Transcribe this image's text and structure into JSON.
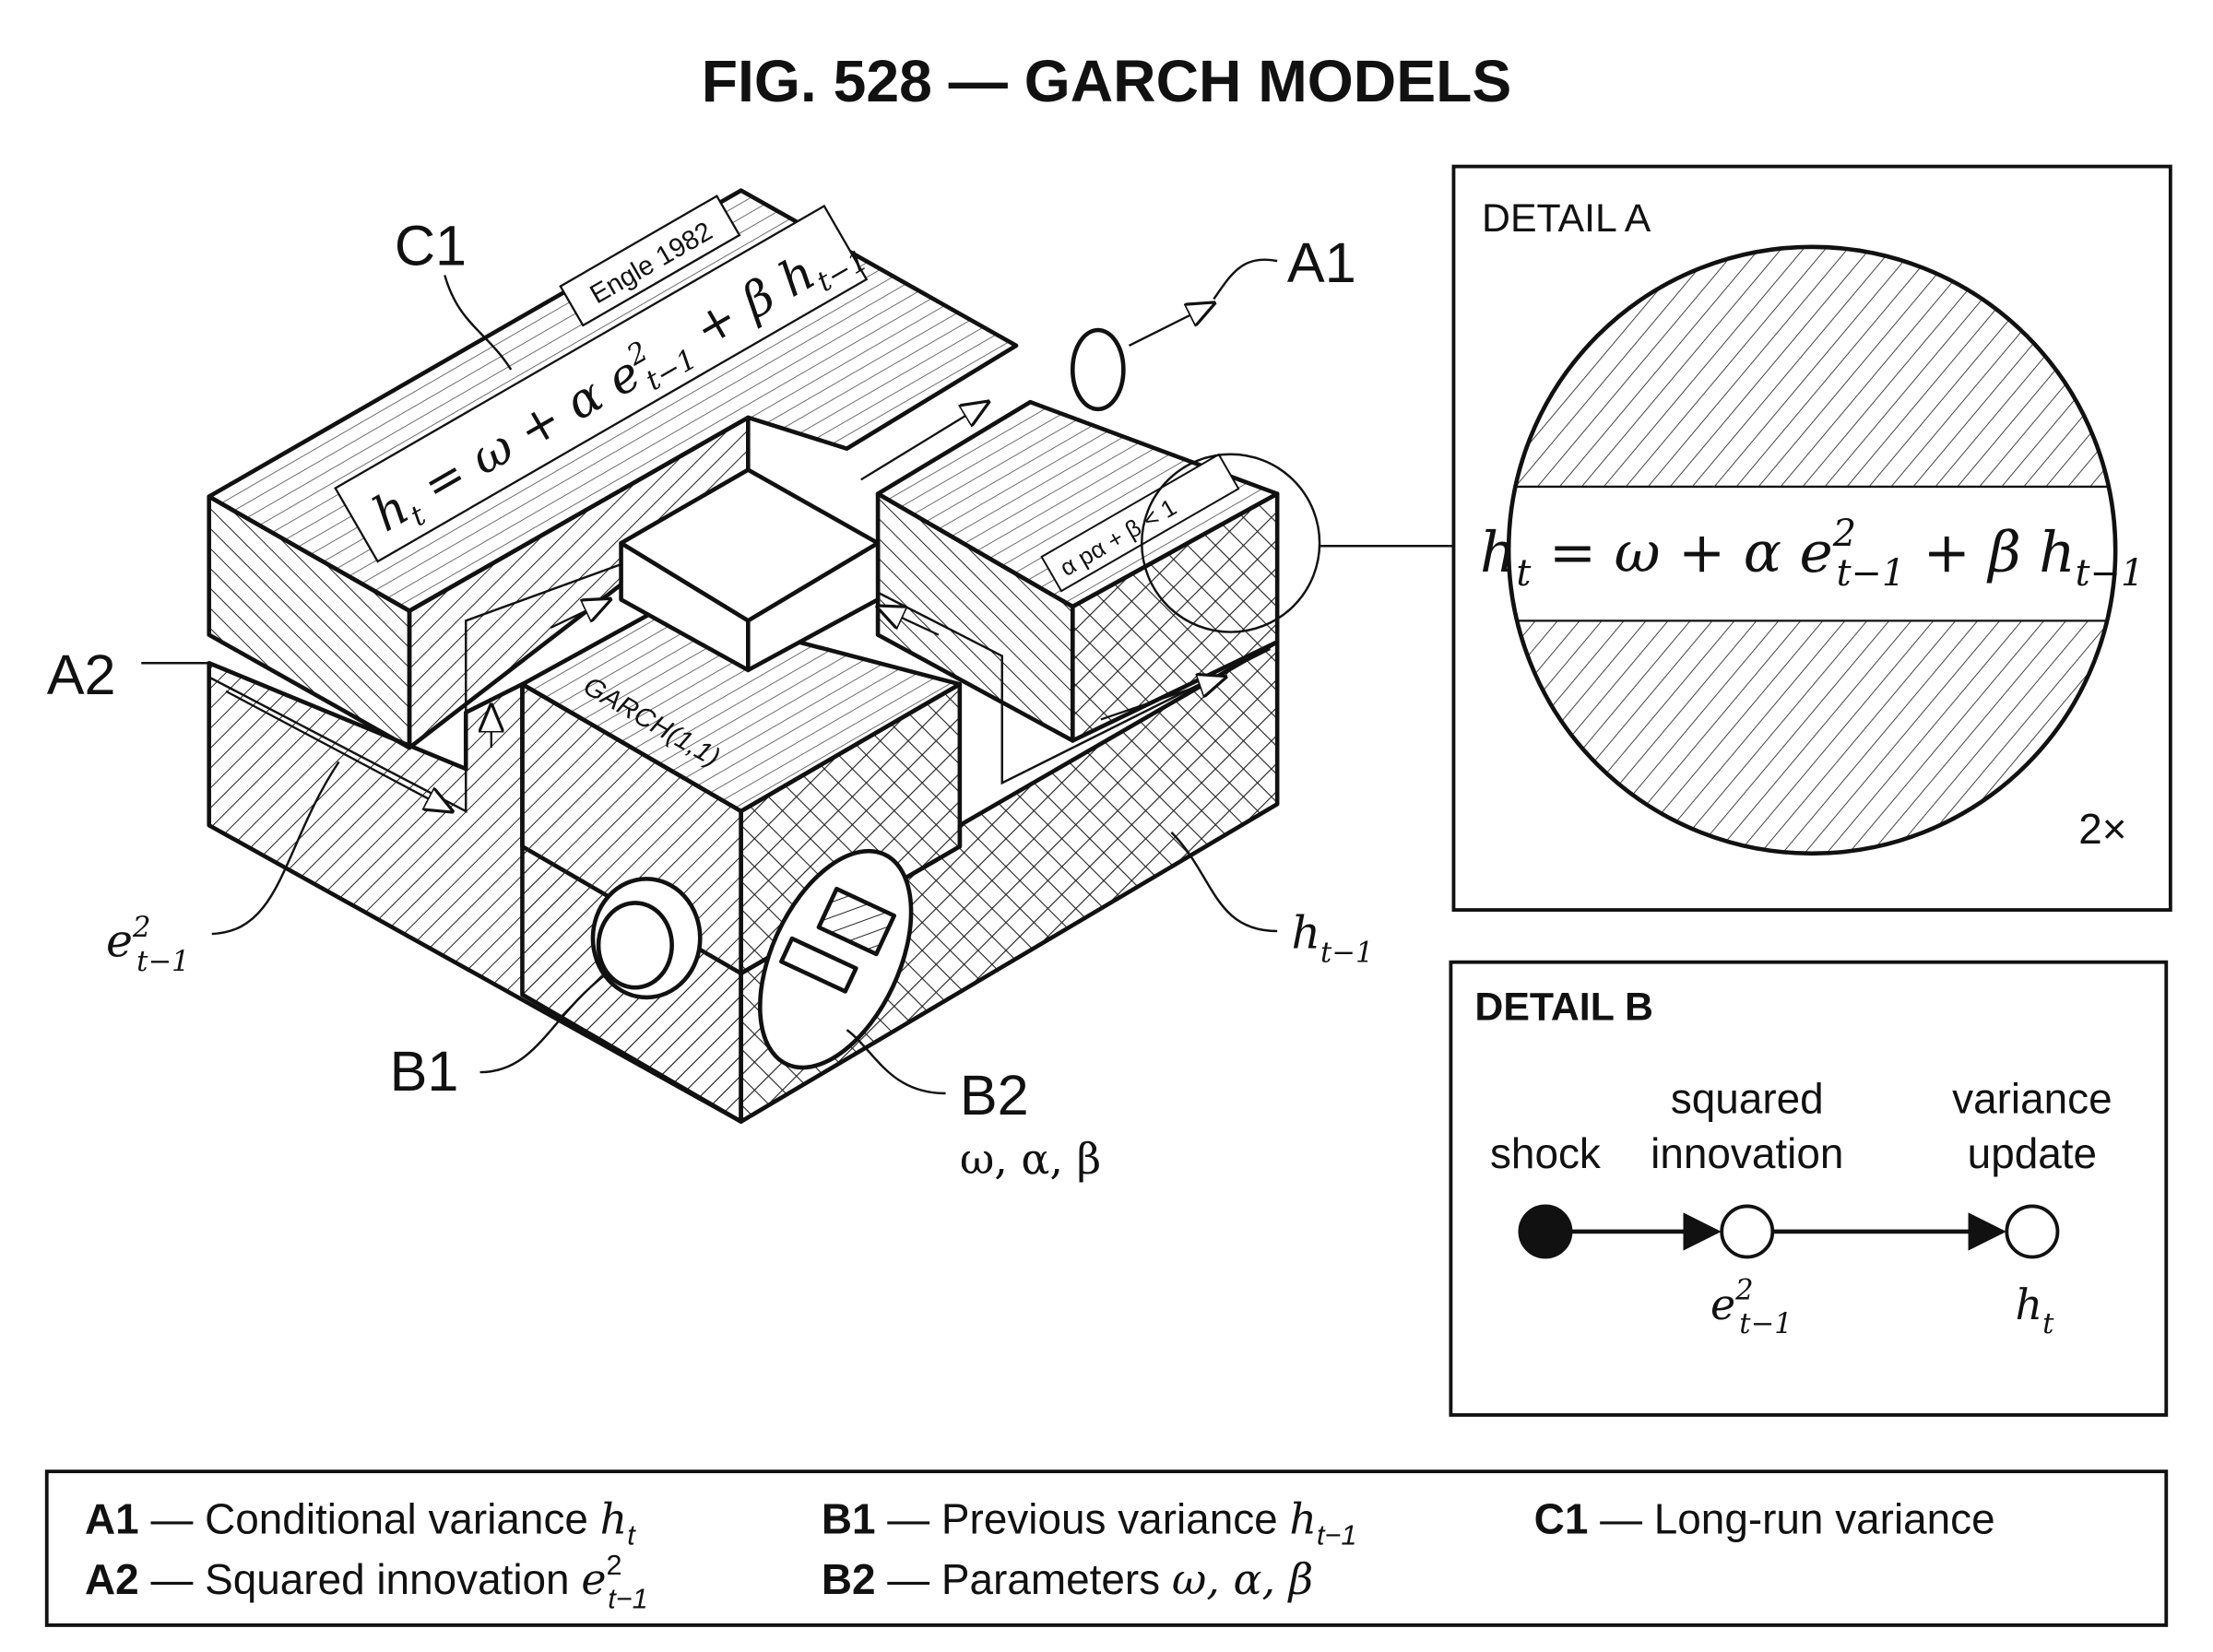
{
  "title": "FIG. 528 — GARCH MODELS",
  "labels": {
    "c1": "C1",
    "a1": "A1",
    "a2": "A2",
    "b1": "B1",
    "b2": "B2",
    "b2_params": "ω, α, β",
    "e_base": "e",
    "e_sup": "2",
    "e_sub": "t−1",
    "h_prev_base": "h",
    "h_prev_sub": "t−1",
    "engle": "Engle 1982",
    "garch": "GARCH(1,1)",
    "constraint": "α pα + β < 1"
  },
  "equation": {
    "h": "h",
    "h_sub": "t",
    "mid": " = ω + α e",
    "e_sup": "2",
    "e_sub": "t−1",
    "plus": " + β h",
    "h2_sub": "t−1"
  },
  "detail_a": {
    "title": "DETAIL A",
    "scale": "2×"
  },
  "detail_b": {
    "title": "DETAIL B",
    "nodes": [
      {
        "label_1": "",
        "label_2": "shock",
        "symbol": "",
        "filled": true
      },
      {
        "label_1": "squared",
        "label_2": "innovation",
        "symbol_base": "e",
        "symbol_sup": "2",
        "symbol_sub": "t−1",
        "filled": false
      },
      {
        "label_1": "variance",
        "label_2": "update",
        "symbol_base": "h",
        "symbol_sub": "t",
        "filled": false
      }
    ]
  },
  "legend": [
    {
      "key": "A1",
      "text": " — Conditional variance ",
      "sym": "h",
      "sub": "t",
      "sup": ""
    },
    {
      "key": "B1",
      "text": " — Previous variance ",
      "sym": "h",
      "sub": "t−1",
      "sup": ""
    },
    {
      "key": "C1",
      "text": " — Long-run variance",
      "sym": "",
      "sub": "",
      "sup": ""
    },
    {
      "key": "A2",
      "text": " — Squared innovation ",
      "sym": "e",
      "sub": "t−1",
      "sup": "2"
    },
    {
      "key": "B2",
      "text": " — Parameters ",
      "sym": "ω, α, β",
      "sub": "",
      "sup": ""
    }
  ]
}
